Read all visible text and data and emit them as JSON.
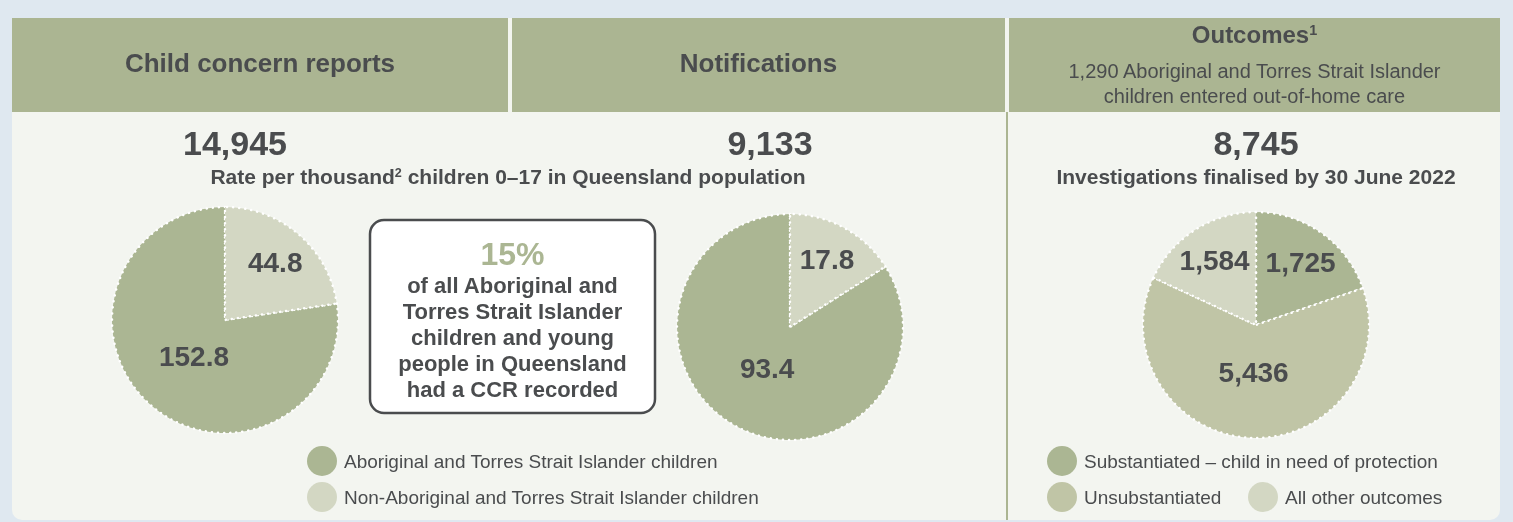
{
  "chart_data": [
    {
      "type": "pie",
      "title": "Child concern reports",
      "subtitle": "Rate per thousand$^{2}$ children 0–17 in Queensland population",
      "annotations": [
        "14,945"
      ],
      "categories": [
        "Aboriginal and Torres Strait Islander children",
        "Non-Aboriginal and Torres Strait Islander children"
      ],
      "values": [
        152.8,
        44.8
      ],
      "colors": [
        "#abb693",
        "#d3d7c3"
      ],
      "data_labels": true,
      "legend": "bottom"
    },
    {
      "type": "other",
      "annotations": [
        "15%",
        "of all Aboriginal and Torres Strait Islander children and young people in Queensland had a CCR recorded"
      ]
    },
    {
      "type": "pie",
      "title": "Notifications",
      "annotations": [
        "9,133"
      ],
      "categories": [
        null,
        null
      ],
      "values": [
        93.4,
        17.8
      ],
      "colors": [
        "#abb693",
        "#d3d7c3"
      ],
      "data_labels": true
    },
    {
      "type": "pie",
      "title": "Outcomes$^{1}$",
      "subtitle": "1,290 Aboriginal and Torres Strait Islander children entered out-of-home care",
      "annotations": [
        "8,745",
        "Investigations finalised by 30 June 2022"
      ],
      "categories": [
        "Substantiated – child in need of protection",
        "Unsubstantiated",
        "All other outcomes"
      ],
      "values": [
        1725,
        5436,
        1584
      ],
      "value_labels": [
        "1,725",
        "5,436",
        "1,584"
      ],
      "colors": [
        "#abb693",
        "#c0c5a6",
        "#d3d7c3"
      ],
      "legend": "bottom"
    }
  ]
}
